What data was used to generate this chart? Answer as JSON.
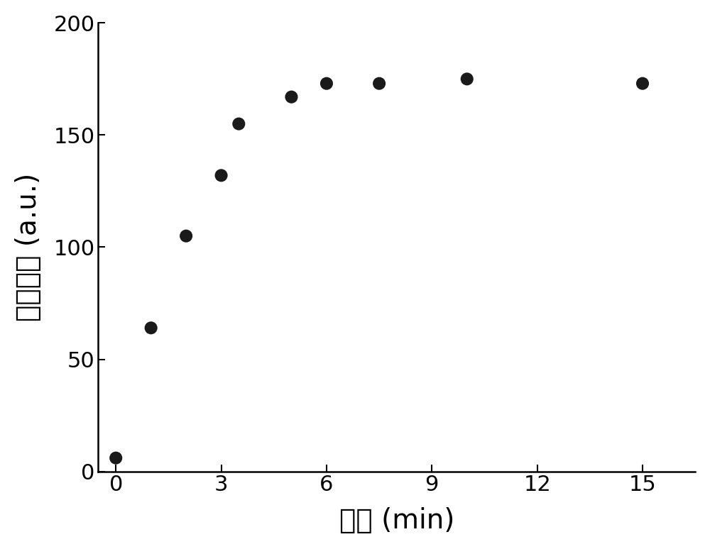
{
  "x": [
    0,
    1,
    2,
    3,
    3.5,
    5,
    6,
    7.5,
    10,
    15
  ],
  "y": [
    6,
    64,
    105,
    132,
    155,
    167,
    173,
    173,
    175,
    173
  ],
  "marker_color": "#1a1a1a",
  "marker_size": 170,
  "xlabel": "时间 (min)",
  "ylabel": "荧光强度 (a.u.)",
  "xlim": [
    -0.5,
    16.5
  ],
  "ylim": [
    0,
    200
  ],
  "xticks": [
    0,
    3,
    6,
    9,
    12,
    15
  ],
  "yticks": [
    0,
    50,
    100,
    150,
    200
  ],
  "xlabel_fontsize": 28,
  "ylabel_fontsize": 28,
  "tick_fontsize": 22,
  "background_color": "#ffffff",
  "spine_linewidth": 1.8
}
